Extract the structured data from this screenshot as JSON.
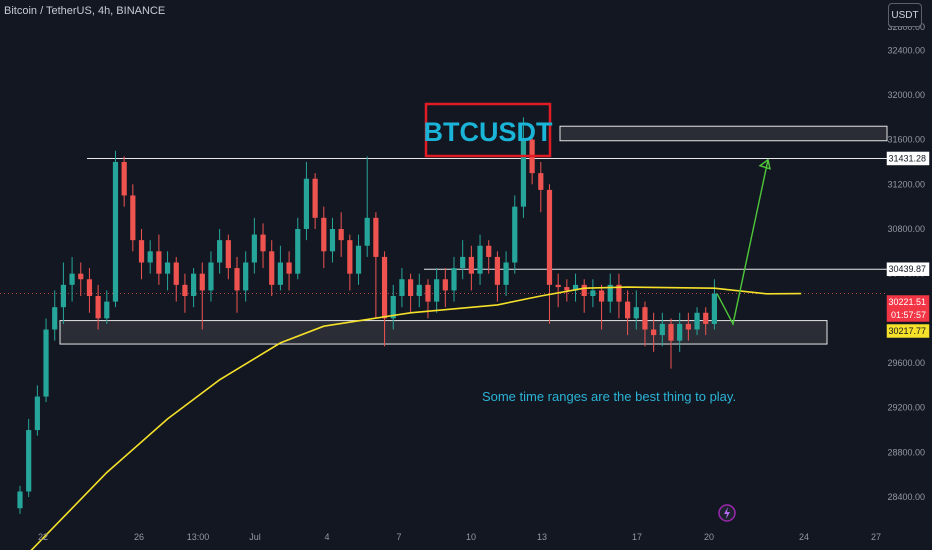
{
  "header": {
    "symbol_text": "Bitcoin / TetherUS, 4h, BINANCE",
    "currency_button": "USDT"
  },
  "colors": {
    "background": "#131722",
    "up": "#26a69a",
    "down": "#ef5350",
    "ma": "#f5e02a",
    "zone_fill": "#2a2d36",
    "arrow": "#4fc83a",
    "title_border": "#e01b24",
    "annotation_text": "#2bb3d6"
  },
  "chart_data": {
    "type": "candlestick",
    "title": "",
    "y_axis": {
      "ticks": [
        28400,
        28800,
        29200,
        29600,
        30000,
        30400,
        30800,
        31200,
        31600,
        32000,
        32400
      ],
      "range": [
        28150,
        32850
      ]
    },
    "x_axis": {
      "ticks": [
        "22",
        "26",
        "13:00",
        "Jul",
        "4",
        "7",
        "10",
        "13",
        "17",
        "20",
        "24",
        "27"
      ]
    },
    "price_tags": [
      {
        "label": "31431.28",
        "value": 31431.28,
        "style": "white"
      },
      {
        "label": "30439.87",
        "value": 30439.87,
        "style": "white"
      },
      {
        "label": "30221.51",
        "value": 30221.51,
        "style": "red"
      },
      {
        "label": "01:57:57",
        "value": 30130,
        "style": "red"
      },
      {
        "label": "30217.77",
        "value": 30000,
        "style": "yellow"
      }
    ],
    "horizontal_levels": [
      {
        "name": "range high",
        "value": 31431.28
      },
      {
        "name": "mid level",
        "value": 30439.87
      }
    ],
    "zones": [
      {
        "name": "support zone",
        "top": 29980,
        "bottom": 29770
      },
      {
        "name": "resistance zone",
        "top": 31720,
        "bottom": 31590
      }
    ],
    "moving_average": [
      [
        1,
        27900
      ],
      [
        10,
        28620
      ],
      [
        17,
        29100
      ],
      [
        23,
        29450
      ],
      [
        30,
        29780
      ],
      [
        35,
        29930
      ],
      [
        45,
        30050
      ],
      [
        55,
        30120
      ],
      [
        60,
        30200
      ],
      [
        65,
        30270
      ],
      [
        70,
        30280
      ],
      [
        80,
        30270
      ],
      [
        86,
        30220
      ],
      [
        90,
        30221.51
      ]
    ],
    "candles": [
      [
        0,
        28300,
        28450,
        28250,
        28500
      ],
      [
        1,
        28450,
        29000,
        28400,
        29100
      ],
      [
        2,
        29000,
        29300,
        28950,
        29400
      ],
      [
        3,
        29300,
        29900,
        29250,
        30000
      ],
      [
        4,
        29900,
        30100,
        29800,
        30250
      ],
      [
        5,
        30100,
        30300,
        29950,
        30500
      ],
      [
        6,
        30300,
        30400,
        30150,
        30550
      ],
      [
        7,
        30400,
        30350,
        30200,
        30500
      ],
      [
        8,
        30350,
        30200,
        30050,
        30450
      ],
      [
        9,
        30200,
        30000,
        29900,
        30300
      ],
      [
        10,
        30000,
        30150,
        29950,
        30250
      ],
      [
        11,
        30150,
        31400,
        30100,
        31500
      ],
      [
        12,
        31400,
        31100,
        31000,
        31450
      ],
      [
        13,
        31100,
        30700,
        30600,
        31200
      ],
      [
        14,
        30700,
        30500,
        30350,
        30800
      ],
      [
        15,
        30500,
        30600,
        30400,
        30700
      ],
      [
        16,
        30600,
        30400,
        30300,
        30750
      ],
      [
        17,
        30400,
        30500,
        30250,
        30600
      ],
      [
        18,
        30500,
        30300,
        30150,
        30550
      ],
      [
        19,
        30300,
        30200,
        30050,
        30400
      ],
      [
        20,
        30200,
        30400,
        30100,
        30450
      ],
      [
        21,
        30400,
        30250,
        29900,
        30500
      ],
      [
        22,
        30250,
        30500,
        30150,
        30600
      ],
      [
        23,
        30500,
        30700,
        30400,
        30800
      ],
      [
        24,
        30700,
        30450,
        30350,
        30750
      ],
      [
        25,
        30450,
        30250,
        30050,
        30550
      ],
      [
        26,
        30250,
        30500,
        30150,
        30600
      ],
      [
        27,
        30500,
        30750,
        30400,
        30900
      ],
      [
        28,
        30750,
        30600,
        30450,
        30850
      ],
      [
        29,
        30600,
        30300,
        30200,
        30700
      ],
      [
        30,
        30300,
        30500,
        30250,
        30650
      ],
      [
        31,
        30500,
        30400,
        30250,
        30600
      ],
      [
        32,
        30400,
        30800,
        30350,
        30900
      ],
      [
        33,
        30800,
        31250,
        30700,
        31400
      ],
      [
        34,
        31250,
        30900,
        30800,
        31300
      ],
      [
        35,
        30900,
        30600,
        30450,
        31000
      ],
      [
        36,
        30600,
        30800,
        30500,
        30900
      ],
      [
        37,
        30800,
        30700,
        30550,
        30950
      ],
      [
        38,
        30700,
        30400,
        30250,
        30750
      ],
      [
        39,
        30400,
        30650,
        30300,
        30750
      ],
      [
        40,
        30650,
        30900,
        30550,
        31450
      ],
      [
        41,
        30900,
        30550,
        30000,
        30950
      ],
      [
        42,
        30550,
        30000,
        29750,
        30600
      ],
      [
        43,
        30000,
        30200,
        29900,
        30300
      ],
      [
        44,
        30200,
        30350,
        30100,
        30450
      ],
      [
        45,
        30350,
        30200,
        30050,
        30400
      ],
      [
        46,
        30200,
        30300,
        30100,
        30400
      ],
      [
        47,
        30300,
        30150,
        30000,
        30350
      ],
      [
        48,
        30150,
        30350,
        30050,
        30450
      ],
      [
        49,
        30350,
        30250,
        30100,
        30450
      ],
      [
        50,
        30250,
        30450,
        30150,
        30550
      ],
      [
        51,
        30450,
        30550,
        30350,
        30700
      ],
      [
        52,
        30550,
        30400,
        30250,
        30650
      ],
      [
        53,
        30400,
        30650,
        30300,
        30750
      ],
      [
        54,
        30650,
        30550,
        30400,
        30700
      ],
      [
        55,
        30550,
        30300,
        30150,
        30600
      ],
      [
        56,
        30300,
        30500,
        30200,
        30600
      ],
      [
        57,
        30500,
        31000,
        30400,
        31100
      ],
      [
        58,
        31000,
        31600,
        30900,
        31800
      ],
      [
        59,
        31600,
        31300,
        31200,
        31700
      ],
      [
        60,
        31300,
        31150,
        30950,
        31400
      ],
      [
        61,
        31150,
        30300,
        29950,
        31200
      ],
      [
        62,
        30300,
        30280,
        30100,
        30400
      ],
      [
        63,
        30280,
        30250,
        30150,
        30350
      ],
      [
        64,
        30250,
        30300,
        30150,
        30400
      ],
      [
        65,
        30300,
        30200,
        30050,
        30350
      ],
      [
        66,
        30200,
        30250,
        30100,
        30350
      ],
      [
        67,
        30250,
        30150,
        29900,
        30300
      ],
      [
        68,
        30150,
        30300,
        30050,
        30400
      ],
      [
        69,
        30300,
        30150,
        30000,
        30400
      ],
      [
        70,
        30150,
        30000,
        29850,
        30250
      ],
      [
        71,
        30000,
        30100,
        29900,
        30250
      ],
      [
        72,
        30100,
        29900,
        29750,
        30150
      ],
      [
        73,
        29900,
        29850,
        29700,
        30050
      ],
      [
        74,
        29850,
        29950,
        29750,
        30050
      ],
      [
        75,
        29950,
        29800,
        29550,
        30000
      ],
      [
        76,
        29800,
        29950,
        29700,
        30050
      ],
      [
        77,
        29950,
        29900,
        29800,
        30050
      ],
      [
        78,
        29900,
        30050,
        29850,
        30100
      ],
      [
        79,
        30050,
        29950,
        29850,
        30100
      ],
      [
        80,
        29950,
        30221.51,
        29900,
        30350
      ]
    ],
    "annotations": {
      "title_box": "BTCUSDT",
      "note": "Some time ranges are the best thing to play."
    },
    "projection_arrow": {
      "from": [
        86,
        29950
      ],
      "to": [
        93,
        31420
      ]
    },
    "grid": false,
    "legend": "none"
  }
}
